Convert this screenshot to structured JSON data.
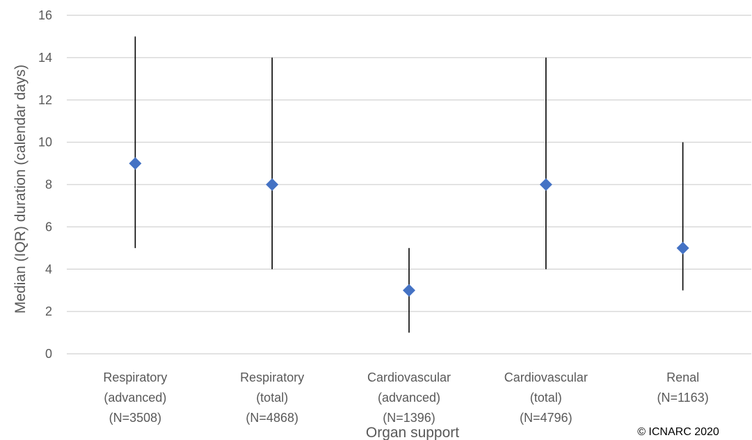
{
  "chart_data": {
    "type": "scatter",
    "ylabel": "Median (IQR) duration (calendar days)",
    "xlabel": "Organ support",
    "ylim": [
      0,
      16
    ],
    "yticks": [
      0,
      2,
      4,
      6,
      8,
      10,
      12,
      14,
      16
    ],
    "grid": true,
    "categories": [
      [
        "Respiratory",
        "(advanced)",
        "(N=3508)"
      ],
      [
        "Respiratory",
        "(total)",
        "(N=4868)"
      ],
      [
        "Cardiovascular",
        "(advanced)",
        "(N=1396)"
      ],
      [
        "Cardiovascular",
        "(total)",
        "(N=4796)"
      ],
      [
        "Renal",
        "(N=1163)"
      ]
    ],
    "series": [
      {
        "median": [
          9,
          8,
          3,
          8,
          5
        ],
        "q1": [
          5,
          4,
          1,
          4,
          3
        ],
        "q3": [
          15,
          14,
          5,
          14,
          10
        ]
      }
    ],
    "marker_color": "#4472C4",
    "errorbar_color": "#000000",
    "gridline_color": "#d9d9d9"
  },
  "credit": "© ICNARC 2020"
}
